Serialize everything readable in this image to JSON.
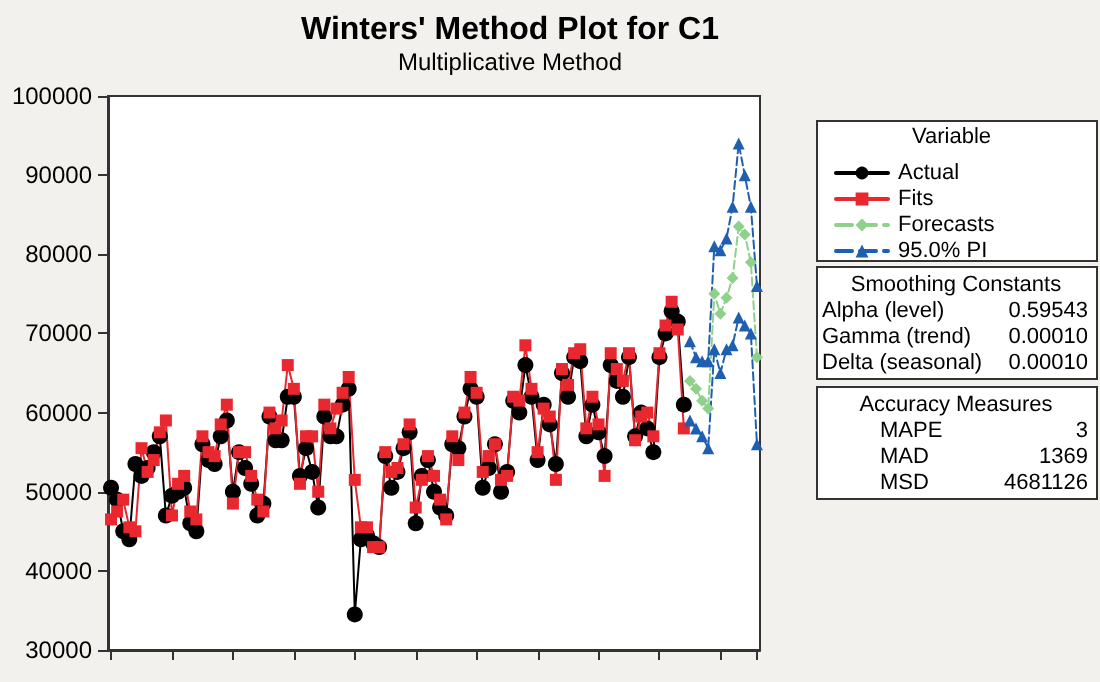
{
  "chart_data": {
    "type": "line",
    "title": "Winters' Method Plot for C1",
    "subtitle": "Multiplicative Method",
    "legend_title": "Variable",
    "legend": "right",
    "grid": false,
    "tick_labels": "y",
    "categories": [
      null,
      null,
      null,
      null,
      null,
      null,
      null,
      null,
      null,
      null,
      null,
      null,
      null,
      null,
      null,
      null,
      null,
      null,
      null,
      null,
      null,
      null,
      null,
      null,
      null,
      null,
      null,
      null,
      null,
      null,
      null,
      null,
      null,
      null,
      null,
      null,
      null,
      null,
      null,
      null,
      null,
      null,
      null,
      null,
      null,
      null,
      null,
      null,
      null,
      null,
      null,
      null,
      null,
      null,
      null,
      null,
      null,
      null,
      null,
      null,
      null,
      null,
      null,
      null,
      null,
      null,
      null,
      null,
      null,
      null,
      null,
      null,
      null,
      null,
      null,
      null,
      null,
      null,
      null,
      null,
      null,
      null,
      null,
      null,
      null,
      null,
      null,
      null,
      null,
      null,
      null,
      null,
      null,
      null,
      null,
      null,
      null,
      null,
      null,
      null,
      null,
      null,
      null,
      null,
      null,
      null,
      null
    ],
    "ylim": [
      30000,
      100000
    ],
    "yticks": [
      30000,
      40000,
      50000,
      60000,
      70000,
      80000,
      90000,
      100000
    ],
    "series": [
      {
        "name": "Actual",
        "color": "#000000",
        "marker": "circle",
        "line_style": "solid",
        "values": [
          50500,
          49000,
          45000,
          44000,
          53500,
          52000,
          53000,
          55000,
          57000,
          47000,
          49500,
          50000,
          50500,
          46000,
          45000,
          56000,
          54000,
          53500,
          57000,
          59000,
          50000,
          55000,
          53000,
          51000,
          47000,
          48500,
          59500,
          56500,
          56500,
          62000,
          62000,
          52000,
          55500,
          52500,
          48000,
          59500,
          57000,
          57000,
          61000,
          63000,
          34500,
          44000,
          44500,
          43500,
          43000,
          54500,
          50500,
          52500,
          55500,
          57500,
          46000,
          52000,
          54000,
          50000,
          48000,
          47000,
          56000,
          55500,
          59500,
          63000,
          62000,
          50500,
          53000,
          56000,
          50000,
          52500,
          61500,
          60000,
          66000,
          62000,
          54000,
          61000,
          58500,
          53500,
          65000,
          62000,
          67000,
          66500,
          57000,
          61000,
          57500,
          54500,
          66000,
          64000,
          62000,
          67000,
          57000,
          60000,
          58000,
          55000,
          67000,
          70000,
          72800,
          71500,
          61000,
          null,
          null,
          null,
          null,
          null,
          null,
          null,
          null,
          null,
          null,
          null,
          null
        ]
      },
      {
        "name": "Fits",
        "color": "#e8282e",
        "marker": "square",
        "line_style": "solid",
        "values": [
          46500,
          47500,
          49000,
          45500,
          45000,
          55500,
          52500,
          54000,
          57500,
          59000,
          47000,
          51000,
          52000,
          47500,
          46500,
          57000,
          55000,
          54500,
          58500,
          61000,
          48500,
          55000,
          55000,
          52000,
          49000,
          47500,
          60000,
          58000,
          59000,
          66000,
          63000,
          51000,
          57000,
          57000,
          50000,
          61000,
          58000,
          60500,
          62500,
          64500,
          51500,
          45500,
          45500,
          43000,
          43000,
          55000,
          52500,
          53000,
          56000,
          58500,
          48000,
          51500,
          54500,
          52000,
          49000,
          46500,
          57000,
          54000,
          60000,
          64500,
          62500,
          52500,
          54500,
          56000,
          51500,
          52000,
          62000,
          61500,
          68500,
          63000,
          55000,
          60500,
          59500,
          51500,
          65500,
          63500,
          67500,
          68000,
          58000,
          62000,
          58500,
          52000,
          67500,
          65500,
          64000,
          67500,
          56500,
          59500,
          60000,
          57000,
          67500,
          71000,
          74000,
          70500,
          58000,
          null,
          null,
          null,
          null,
          null,
          null,
          null,
          null,
          null,
          null,
          null,
          null
        ]
      },
      {
        "name": "Forecasts",
        "color": "#8fd18a",
        "marker": "diamond",
        "line_style": "dashed",
        "values": [
          null,
          null,
          null,
          null,
          null,
          null,
          null,
          null,
          null,
          null,
          null,
          null,
          null,
          null,
          null,
          null,
          null,
          null,
          null,
          null,
          null,
          null,
          null,
          null,
          null,
          null,
          null,
          null,
          null,
          null,
          null,
          null,
          null,
          null,
          null,
          null,
          null,
          null,
          null,
          null,
          null,
          null,
          null,
          null,
          null,
          null,
          null,
          null,
          null,
          null,
          null,
          null,
          null,
          null,
          null,
          null,
          null,
          null,
          null,
          null,
          null,
          null,
          null,
          null,
          null,
          null,
          null,
          null,
          null,
          null,
          null,
          null,
          null,
          null,
          null,
          null,
          null,
          null,
          null,
          null,
          null,
          null,
          null,
          null,
          null,
          null,
          null,
          null,
          null,
          null,
          null,
          null,
          null,
          null,
          null,
          64000,
          63000,
          61500,
          60500,
          75000,
          72500,
          74500,
          77000,
          83500,
          82500,
          79000,
          67000
        ]
      },
      {
        "name": "95.0% PI",
        "color": "#1f5fb0",
        "marker": "triangle",
        "line_style": "dashed",
        "values": [
          null,
          null,
          null,
          null,
          null,
          null,
          null,
          null,
          null,
          null,
          null,
          null,
          null,
          null,
          null,
          null,
          null,
          null,
          null,
          null,
          null,
          null,
          null,
          null,
          null,
          null,
          null,
          null,
          null,
          null,
          null,
          null,
          null,
          null,
          null,
          null,
          null,
          null,
          null,
          null,
          null,
          null,
          null,
          null,
          null,
          null,
          null,
          null,
          null,
          null,
          null,
          null,
          null,
          null,
          null,
          null,
          null,
          null,
          null,
          null,
          null,
          null,
          null,
          null,
          null,
          null,
          null,
          null,
          null,
          null,
          null,
          null,
          null,
          null,
          null,
          null,
          null,
          null,
          null,
          null,
          null,
          null,
          null,
          null,
          null,
          null,
          null,
          null,
          null,
          null,
          null,
          null,
          null,
          null,
          null,
          69000,
          67000,
          66500,
          66500,
          81000,
          80500,
          82000,
          86000,
          94000,
          90000,
          86000,
          76000
        ]
      },
      {
        "color": "#1f5fb0",
        "marker": "triangle",
        "line_style": "dashed",
        "values": [
          null,
          null,
          null,
          null,
          null,
          null,
          null,
          null,
          null,
          null,
          null,
          null,
          null,
          null,
          null,
          null,
          null,
          null,
          null,
          null,
          null,
          null,
          null,
          null,
          null,
          null,
          null,
          null,
          null,
          null,
          null,
          null,
          null,
          null,
          null,
          null,
          null,
          null,
          null,
          null,
          null,
          null,
          null,
          null,
          null,
          null,
          null,
          null,
          null,
          null,
          null,
          null,
          null,
          null,
          null,
          null,
          null,
          null,
          null,
          null,
          null,
          null,
          null,
          null,
          null,
          null,
          null,
          null,
          null,
          null,
          null,
          null,
          null,
          null,
          null,
          null,
          null,
          null,
          null,
          null,
          null,
          null,
          null,
          null,
          null,
          null,
          null,
          null,
          null,
          null,
          null,
          null,
          null,
          null,
          null,
          59000,
          58000,
          57000,
          55500,
          68000,
          65000,
          68000,
          68500,
          72000,
          71000,
          70000,
          56000
        ]
      }
    ],
    "annotations": [
      "Smoothing Constants",
      "Alpha (level)",
      "0.59543",
      "Gamma (trend)",
      "0.00010",
      "Delta (seasonal)",
      "0.00010",
      "Accuracy Measures",
      "MAPE",
      "3",
      "MAD",
      "1369",
      "MSD",
      "4681126"
    ]
  }
}
